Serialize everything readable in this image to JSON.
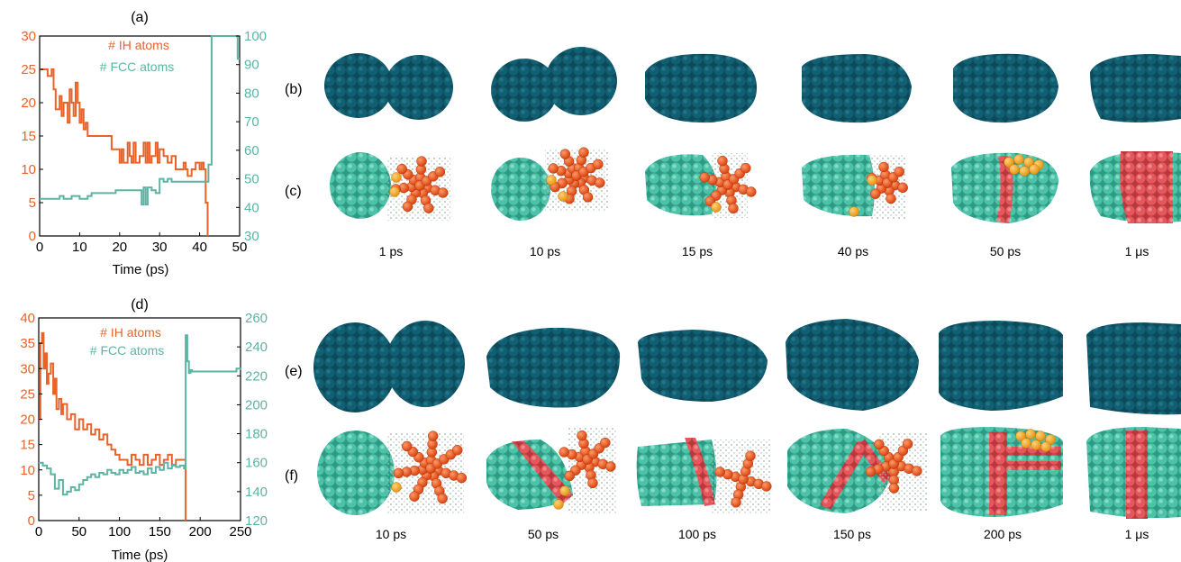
{
  "colors": {
    "ih": "#e8632a",
    "fcc": "#5bb5a2",
    "bulk": "#0f5466",
    "fcc_atom": "#48bda3",
    "ih_atom": "#e84e1c",
    "twin": "#e0565a",
    "surface": "#f0a21c",
    "dots": "#9aa9a0"
  },
  "chart_data": [
    {
      "type": "line",
      "panel_label": "(a)",
      "xlabel": "Time (ps)",
      "xlim": [
        0,
        50
      ],
      "xticks": [
        0,
        10,
        20,
        30,
        40,
        50
      ],
      "ylim_left": [
        0,
        30
      ],
      "yticks_left": [
        0,
        5,
        10,
        15,
        20,
        25,
        30
      ],
      "ylim_right": [
        30,
        100
      ],
      "yticks_right": [
        30,
        40,
        50,
        60,
        70,
        80,
        90,
        100
      ],
      "legend": [
        "# IH atoms",
        "# FCC atoms"
      ],
      "series": [
        {
          "name": "# IH atoms",
          "axis": "left",
          "x": [
            0,
            1,
            2,
            3,
            3.5,
            4,
            5,
            5.5,
            6,
            7,
            7.5,
            8,
            8.5,
            9,
            9.5,
            10,
            10.5,
            11,
            11.5,
            12,
            12.5,
            13,
            15,
            17,
            18,
            19,
            20,
            20.5,
            21,
            22,
            22.5,
            23,
            23.5,
            24,
            25,
            26,
            26.5,
            27,
            27.5,
            28,
            29,
            29.5,
            30,
            31,
            32,
            33,
            34,
            35,
            36,
            36.5,
            37,
            38,
            39,
            40,
            40.5,
            41,
            41.5,
            42
          ],
          "y": [
            25,
            25,
            24,
            25,
            22,
            19,
            21,
            18,
            20,
            17,
            22,
            20,
            18,
            23,
            20,
            17,
            19,
            16,
            17,
            15,
            15,
            15,
            15,
            15,
            13,
            13,
            11,
            13,
            11,
            14,
            12,
            11,
            14,
            11,
            12,
            14,
            11,
            14,
            11,
            12,
            14,
            11,
            13,
            12,
            11,
            12,
            10,
            10,
            11,
            10,
            9,
            10,
            11,
            10,
            11,
            10,
            5,
            0
          ]
        },
        {
          "name": "# FCC atoms",
          "axis": "right",
          "x": [
            0,
            2,
            4,
            5,
            6,
            8,
            10,
            12,
            13,
            15,
            17,
            19,
            20,
            22,
            24,
            25,
            25.5,
            26,
            26.5,
            27,
            28,
            29,
            30,
            31,
            32,
            33,
            34,
            36,
            38,
            40,
            41,
            42,
            42.2,
            43,
            48,
            49,
            49.5,
            50
          ],
          "y": [
            43,
            43,
            43,
            44,
            43,
            44,
            43,
            44,
            45,
            45,
            45,
            46,
            46,
            46,
            46,
            46,
            41,
            47,
            41,
            47,
            46,
            45,
            50,
            49,
            50,
            49,
            49,
            49,
            49,
            49,
            49,
            49,
            55,
            100,
            100,
            100,
            92,
            92
          ]
        }
      ]
    },
    {
      "type": "line",
      "panel_label": "(d)",
      "xlabel": "Time (ps)",
      "xlim": [
        0,
        250
      ],
      "xticks": [
        0,
        50,
        100,
        150,
        200,
        250
      ],
      "ylim_left": [
        0,
        40
      ],
      "yticks_left": [
        0,
        5,
        10,
        15,
        20,
        25,
        30,
        35,
        40
      ],
      "ylim_right": [
        120,
        260
      ],
      "yticks_right": [
        120,
        140,
        160,
        180,
        200,
        220,
        240,
        260
      ],
      "legend": [
        "# IH atoms",
        "# FCC atoms"
      ],
      "series": [
        {
          "name": "# IH atoms",
          "axis": "left",
          "x": [
            0,
            2,
            4,
            6,
            8,
            10,
            12,
            15,
            18,
            20,
            22,
            25,
            28,
            30,
            35,
            40,
            45,
            50,
            55,
            60,
            65,
            70,
            75,
            80,
            85,
            90,
            95,
            100,
            105,
            110,
            115,
            120,
            125,
            130,
            135,
            140,
            145,
            150,
            155,
            160,
            165,
            170,
            175,
            180,
            182
          ],
          "y": [
            20,
            35,
            37,
            30,
            33,
            27,
            29,
            31,
            25,
            28,
            22,
            24,
            21,
            23,
            20,
            21,
            18,
            20,
            18,
            19,
            17,
            18,
            16,
            17,
            15,
            14,
            13,
            12,
            12,
            11,
            13,
            12,
            11,
            13,
            11,
            12,
            13,
            11,
            12,
            13,
            11,
            12,
            12,
            12,
            0
          ]
        },
        {
          "name": "# FCC atoms",
          "axis": "right",
          "x": [
            0,
            5,
            10,
            15,
            20,
            25,
            30,
            35,
            40,
            45,
            50,
            55,
            60,
            65,
            70,
            75,
            80,
            85,
            90,
            95,
            100,
            105,
            110,
            115,
            120,
            125,
            130,
            135,
            140,
            145,
            150,
            155,
            160,
            165,
            170,
            175,
            180,
            182,
            184,
            186,
            188,
            190,
            200,
            210,
            220,
            230,
            240,
            245,
            250
          ],
          "y": [
            160,
            158,
            156,
            152,
            142,
            148,
            138,
            140,
            143,
            141,
            145,
            148,
            150,
            152,
            150,
            153,
            152,
            155,
            153,
            152,
            155,
            153,
            155,
            157,
            153,
            154,
            152,
            156,
            153,
            157,
            155,
            160,
            156,
            158,
            157,
            158,
            156,
            248,
            230,
            222,
            224,
            223,
            223,
            223,
            223,
            223,
            223,
            225,
            224
          ]
        }
      ]
    }
  ],
  "row_labels": [
    "(b)",
    "(c)",
    "(e)",
    "(f)"
  ],
  "top_times": [
    "1 ps",
    "10 ps",
    "15 ps",
    "40 ps",
    "50 ps",
    "1 μs"
  ],
  "bottom_times": [
    "10 ps",
    "50 ps",
    "100 ps",
    "150 ps",
    "200 ps",
    "1 μs"
  ]
}
